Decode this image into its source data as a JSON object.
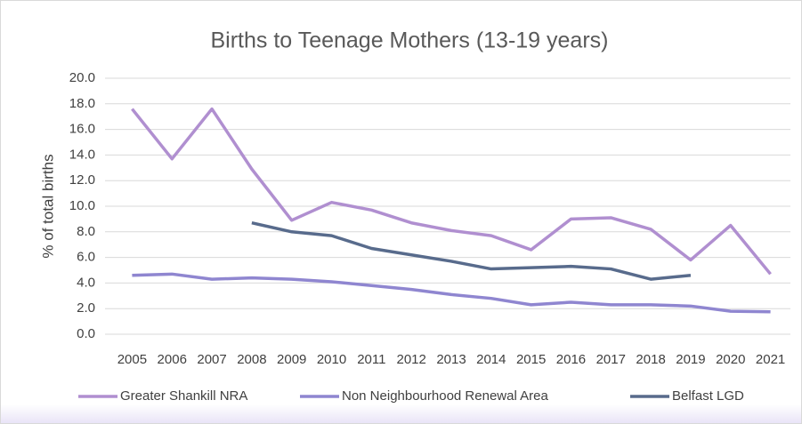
{
  "chart_data": {
    "type": "line",
    "title": "Births to Teenage Mothers (13-19 years)",
    "y_label": "% of total births",
    "categories": [
      "2005",
      "2006",
      "2007",
      "2008",
      "2009",
      "2010",
      "2011",
      "2012",
      "2013",
      "2014",
      "2015",
      "2016",
      "2017",
      "2018",
      "2019",
      "2020",
      "2021"
    ],
    "series": [
      {
        "name": "Greater Shankill NRA",
        "color": "#b08fd0",
        "values": [
          17.6,
          13.7,
          17.6,
          12.9,
          8.9,
          10.3,
          9.7,
          8.7,
          8.1,
          7.7,
          6.6,
          9.0,
          9.1,
          8.2,
          5.8,
          8.5,
          4.7
        ]
      },
      {
        "name": "Non Neighbourhood Renewal Area",
        "color": "#8f86d0",
        "values": [
          4.6,
          4.7,
          4.3,
          4.4,
          4.3,
          4.1,
          3.8,
          3.5,
          3.1,
          2.8,
          2.3,
          2.5,
          2.3,
          2.3,
          2.2,
          1.8,
          1.75
        ]
      },
      {
        "name": "Belfast LGD",
        "color": "#586b8c",
        "values": [
          null,
          null,
          null,
          8.7,
          8.0,
          7.7,
          6.7,
          6.2,
          5.7,
          5.1,
          5.2,
          5.3,
          5.1,
          4.3,
          4.6,
          null,
          null
        ]
      }
    ],
    "ylim": [
      0,
      20
    ],
    "yticks": [
      {
        "value": 0,
        "label": "0.0"
      },
      {
        "value": 2,
        "label": "2.0"
      },
      {
        "value": 4,
        "label": "4.0"
      },
      {
        "value": 6,
        "label": "6.0"
      },
      {
        "value": 8,
        "label": "8.0"
      },
      {
        "value": 10,
        "label": "10.0"
      },
      {
        "value": 12,
        "label": "12.0"
      },
      {
        "value": 14,
        "label": "14.0"
      },
      {
        "value": 16,
        "label": "16.0"
      },
      {
        "value": 18,
        "label": "18.0"
      },
      {
        "value": 20,
        "label": "20.0"
      }
    ],
    "grid": true,
    "legend": "bottom"
  }
}
